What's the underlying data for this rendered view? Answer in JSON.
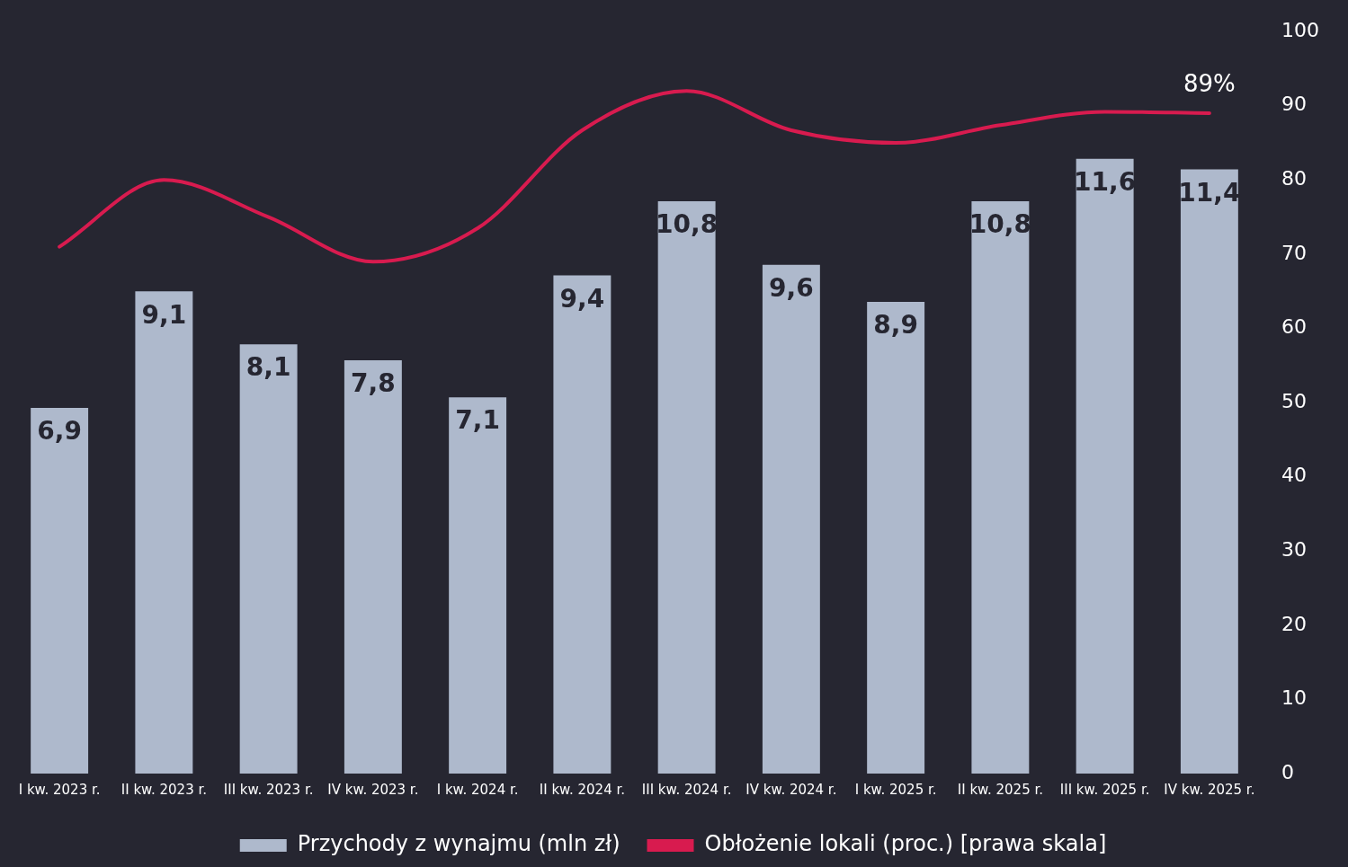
{
  "chart_data": {
    "type": "bar",
    "categories": [
      "I kw. 2023 r.",
      "II kw. 2023 r.",
      "III kw. 2023 r.",
      "IV kw. 2023 r.",
      "I kw. 2024 r.",
      "II kw. 2024 r.",
      "III kw. 2024 r.",
      "IV kw. 2024 r.",
      "I kw. 2025 r.",
      "II kw. 2025 r.",
      "III kw. 2025 r.",
      "IV kw. 2025 r."
    ],
    "series": [
      {
        "name": "Przychody z wynajmu (mln zł)",
        "color": "#aeb9cc",
        "values": [
          6.9,
          9.1,
          8.1,
          7.8,
          7.1,
          9.4,
          10.8,
          9.6,
          8.9,
          10.8,
          11.6,
          11.4
        ],
        "value_labels": [
          "6,9",
          "9,1",
          "8,1",
          "7,8",
          "7,1",
          "9,4",
          "10,8",
          "9,6",
          "8,9",
          "10,8",
          "11,6",
          "11,4"
        ]
      },
      {
        "name": "Obłożenie lokali (proc.) [prawa skala]",
        "type": "line",
        "axis": "y2",
        "color": "#d81b4f",
        "values": [
          71,
          80,
          75,
          69,
          73.5,
          86.7,
          92,
          86.7,
          85,
          87.4,
          89.2,
          89
        ]
      }
    ],
    "y2lim": [
      0,
      100
    ],
    "y2ticks": [
      0,
      10,
      20,
      30,
      40,
      50,
      60,
      70,
      80,
      90,
      100
    ],
    "annotations": [
      "89%"
    ],
    "legend": "bottom",
    "grid": false,
    "marker": "none"
  }
}
